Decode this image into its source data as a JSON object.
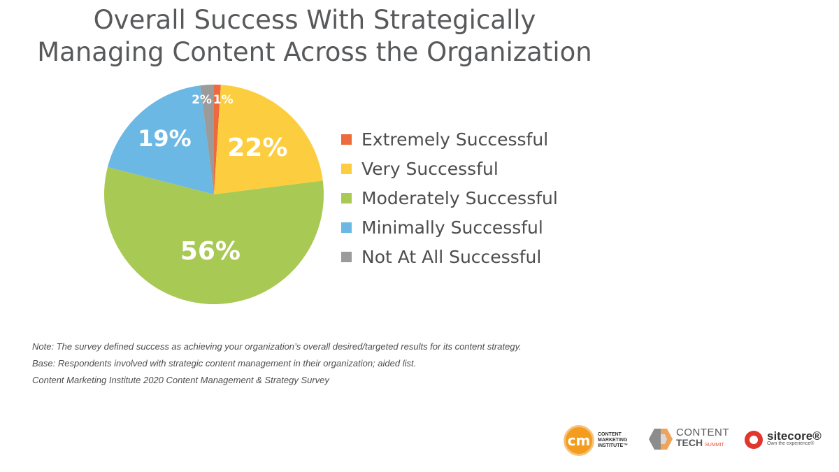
{
  "chart_data": {
    "type": "pie",
    "title": [
      "Overall Success With Strategically",
      "Managing Content Across the Organization"
    ],
    "slices": [
      {
        "label": "Extremely Successful",
        "value": 1,
        "display": "1%",
        "color": "#ec6a3b"
      },
      {
        "label": "Very Successful",
        "value": 22,
        "display": "22%",
        "color": "#fcce3f"
      },
      {
        "label": "Moderately Successful",
        "value": 56,
        "display": "56%",
        "color": "#a9c955"
      },
      {
        "label": "Minimally Successful",
        "value": 19,
        "display": "19%",
        "color": "#6bb8e4"
      },
      {
        "label": "Not At All Successful",
        "value": 2,
        "display": "2%",
        "color": "#9b9b9b"
      }
    ],
    "legend_position": "right"
  },
  "notes": [
    "Note: The survey defined success as achieving your organization’s overall desired/targeted results for its content strategy.",
    "Base: Respondents involved with strategic content management in their organization; aided list.",
    "Content Marketing Institute 2020 Content Management & Strategy Survey"
  ],
  "logos": {
    "cmi": {
      "badge": "cm",
      "lines": [
        "CONTENT",
        "MARKETING",
        "INSTITUTE™"
      ]
    },
    "content_tech": {
      "top": "CONTENT",
      "bottom": "TECH",
      "suffix": "SUMMIT"
    },
    "sitecore": {
      "name": "sitecore®",
      "tagline": "Own the experience®"
    }
  }
}
